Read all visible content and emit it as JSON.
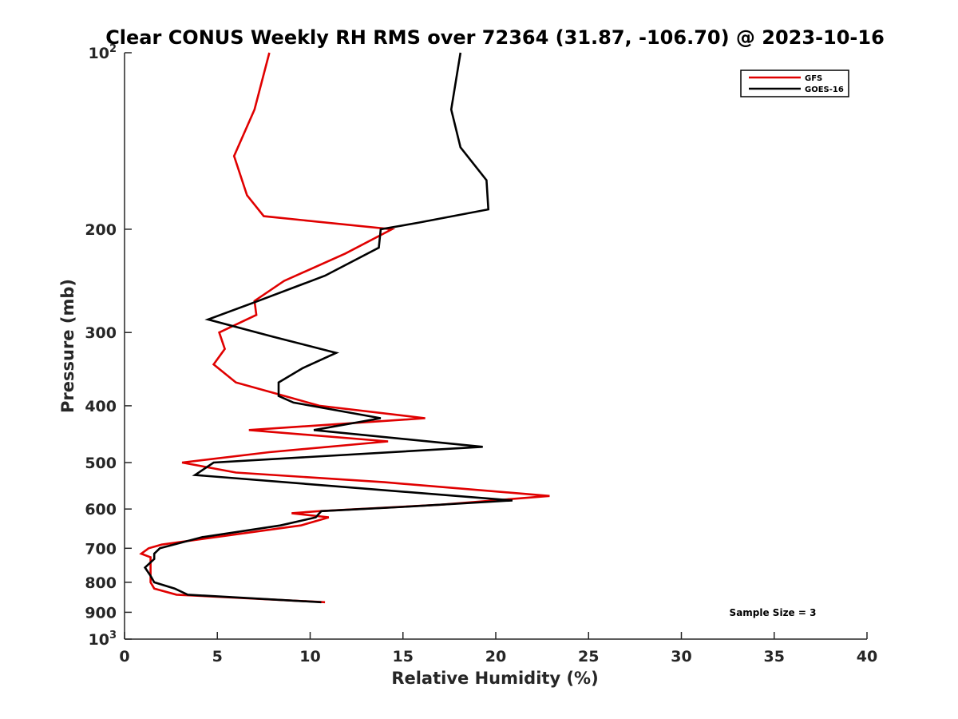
{
  "chart_data": {
    "type": "line",
    "title": "Clear CONUS Weekly RH RMS over 72364 (31.87, -106.70) @ 2023-10-16",
    "xlabel": "Relative Humidity (%)",
    "ylabel": "Pressure (mb)",
    "xlim": [
      0,
      40
    ],
    "ylim": [
      100,
      1000
    ],
    "yscale": "log",
    "y_reversed": true,
    "x_ticks": [
      0,
      5,
      10,
      15,
      20,
      25,
      30,
      35,
      40
    ],
    "y_ticks": [
      {
        "value": 100,
        "label": "10",
        "sup": "2"
      },
      {
        "value": 200,
        "label": "200",
        "sup": ""
      },
      {
        "value": 300,
        "label": "300",
        "sup": ""
      },
      {
        "value": 400,
        "label": "400",
        "sup": ""
      },
      {
        "value": 500,
        "label": "500",
        "sup": ""
      },
      {
        "value": 600,
        "label": "600",
        "sup": ""
      },
      {
        "value": 700,
        "label": "700",
        "sup": ""
      },
      {
        "value": 800,
        "label": "800",
        "sup": ""
      },
      {
        "value": 900,
        "label": "900",
        "sup": ""
      },
      {
        "value": 1000,
        "label": "10",
        "sup": "3"
      }
    ],
    "grid": false,
    "legend_position": "top-right",
    "annotation": "Sample Size = 3",
    "series": [
      {
        "name": "GFS",
        "color": "#e00000",
        "points": [
          [
            7.8,
            100
          ],
          [
            7.0,
            125
          ],
          [
            5.9,
            150
          ],
          [
            6.6,
            175
          ],
          [
            7.5,
            190
          ],
          [
            14.4,
            200
          ],
          [
            11.9,
            220
          ],
          [
            8.6,
            245
          ],
          [
            7.0,
            265
          ],
          [
            7.1,
            280
          ],
          [
            5.1,
            300
          ],
          [
            5.4,
            320
          ],
          [
            4.8,
            340
          ],
          [
            6.0,
            365
          ],
          [
            8.0,
            380
          ],
          [
            10.5,
            400
          ],
          [
            16.2,
            420
          ],
          [
            6.7,
            440
          ],
          [
            14.2,
            460
          ],
          [
            7.8,
            480
          ],
          [
            3.1,
            500
          ],
          [
            6.0,
            520
          ],
          [
            14.0,
            540
          ],
          [
            22.9,
            570
          ],
          [
            17.0,
            590
          ],
          [
            10.5,
            605
          ],
          [
            9.0,
            610
          ],
          [
            11.0,
            620
          ],
          [
            9.5,
            640
          ],
          [
            2.0,
            690
          ],
          [
            1.3,
            700
          ],
          [
            0.9,
            715
          ],
          [
            1.4,
            725
          ],
          [
            1.4,
            760
          ],
          [
            1.4,
            800
          ],
          [
            1.6,
            820
          ],
          [
            2.8,
            840
          ],
          [
            10.8,
            865
          ]
        ]
      },
      {
        "name": "GOES-16",
        "color": "#000000",
        "points": [
          [
            18.1,
            100
          ],
          [
            17.6,
            125
          ],
          [
            18.1,
            145
          ],
          [
            19.5,
            165
          ],
          [
            19.6,
            185
          ],
          [
            15.8,
            195
          ],
          [
            13.8,
            200
          ],
          [
            13.7,
            215
          ],
          [
            10.8,
            240
          ],
          [
            7.2,
            265
          ],
          [
            4.5,
            285
          ],
          [
            8.0,
            305
          ],
          [
            11.4,
            325
          ],
          [
            9.6,
            345
          ],
          [
            8.3,
            365
          ],
          [
            8.3,
            385
          ],
          [
            9.1,
            395
          ],
          [
            13.8,
            420
          ],
          [
            10.2,
            440
          ],
          [
            19.3,
            470
          ],
          [
            4.8,
            500
          ],
          [
            3.8,
            525
          ],
          [
            20.9,
            580
          ],
          [
            15.0,
            595
          ],
          [
            10.6,
            605
          ],
          [
            10.3,
            620
          ],
          [
            8.4,
            640
          ],
          [
            4.2,
            670
          ],
          [
            1.9,
            700
          ],
          [
            1.6,
            715
          ],
          [
            1.6,
            730
          ],
          [
            1.1,
            755
          ],
          [
            1.4,
            780
          ],
          [
            1.6,
            800
          ],
          [
            2.7,
            820
          ],
          [
            3.4,
            840
          ],
          [
            10.6,
            865
          ]
        ]
      }
    ]
  }
}
